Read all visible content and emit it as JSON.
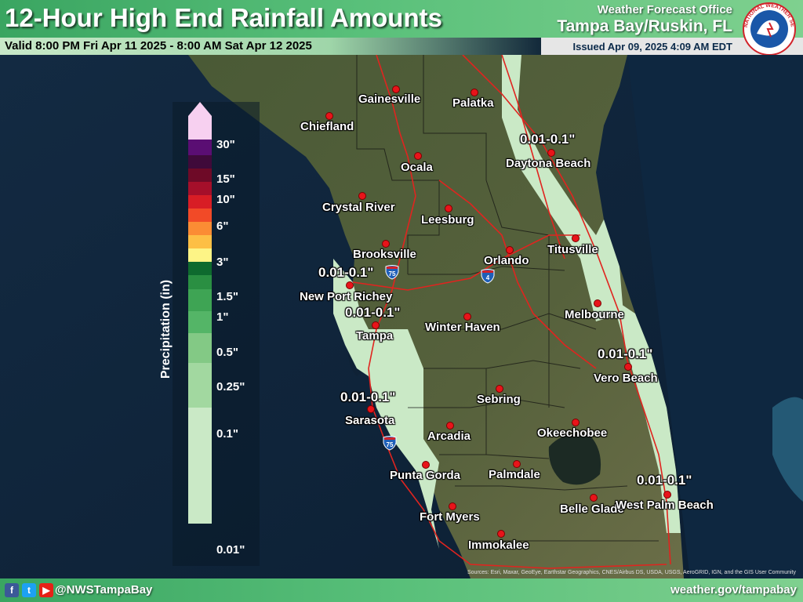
{
  "header": {
    "title": "12-Hour High End Rainfall Amounts",
    "valid": "Valid 8:00 PM Fri Apr 11 2025 - 8:00 AM Sat Apr 12 2025",
    "office_line1": "Weather Forecast Office",
    "office_line2": "Tampa Bay/Ruskin, FL",
    "issued": "Issued Apr 09, 2025 4:09 AM EDT",
    "logo_text": "NATIONAL WEATHER SERVICE"
  },
  "legend": {
    "title": "Precipitation (in)",
    "ticks": [
      "30\"",
      "15\"",
      "10\"",
      "6\"",
      "3\"",
      "1.5\"",
      "1\"",
      "0.5\"",
      "0.25\"",
      "0.1\"",
      "0.01\""
    ],
    "colors": [
      "#f7d0f0",
      "#5a0e73",
      "#3f0a3a",
      "#6e0a27",
      "#a50f2a",
      "#d81d25",
      "#f24a27",
      "#fb8c34",
      "#fdbf45",
      "#fdf486",
      "#0e6a2e",
      "#2a8f42",
      "#3ea454",
      "#54b567",
      "#83c985",
      "#a2d8a0",
      "#cae9c6"
    ]
  },
  "range_labels": [
    {
      "text": "0.01-0.1\""
    },
    {
      "text": "0.01-0.1\""
    },
    {
      "text": "0.01-0.1\""
    },
    {
      "text": "0.01-0.1\""
    },
    {
      "text": "0.01-0.1\""
    },
    {
      "text": "0.01-0.1\""
    }
  ],
  "cities": [
    {
      "name": "Gainesville"
    },
    {
      "name": "Palatka"
    },
    {
      "name": "Chiefland"
    },
    {
      "name": "Ocala"
    },
    {
      "name": "Daytona Beach"
    },
    {
      "name": "Crystal River"
    },
    {
      "name": "Leesburg"
    },
    {
      "name": "Brooksville"
    },
    {
      "name": "Titusville"
    },
    {
      "name": "Orlando"
    },
    {
      "name": "New Port Richey"
    },
    {
      "name": "Tampa"
    },
    {
      "name": "Winter Haven"
    },
    {
      "name": "Melbourne"
    },
    {
      "name": "Vero Beach"
    },
    {
      "name": "Sebring"
    },
    {
      "name": "Sarasota"
    },
    {
      "name": "Arcadia"
    },
    {
      "name": "Okeechobee"
    },
    {
      "name": "Punta Gorda"
    },
    {
      "name": "Palmdale"
    },
    {
      "name": "Belle Glade"
    },
    {
      "name": "West Palm Beach"
    },
    {
      "name": "Fort Myers"
    },
    {
      "name": "Immokalee"
    }
  ],
  "interstates": [
    {
      "number": "75",
      "color": "#1f5fb8"
    },
    {
      "number": "4",
      "color": "#1f5fb8"
    },
    {
      "number": "75",
      "color": "#1f5fb8"
    }
  ],
  "footer": {
    "handle": "@NWSTampaBay",
    "site": "weather.gov/tampabay",
    "icons": [
      "facebook-icon",
      "twitter-icon",
      "youtube-icon"
    ],
    "attribution": "Sources: Esri, Maxar, GeoEye, Earthstar Geographics, CNES/Airbus DS, USDA, USGS, AeroGRID, IGN, and the GIS User Community"
  },
  "colors": {
    "header_green": "#3aa561",
    "city_dot": "#e8141a",
    "light_rain_fill": "#cae9c6",
    "roads": "#e0241f"
  }
}
